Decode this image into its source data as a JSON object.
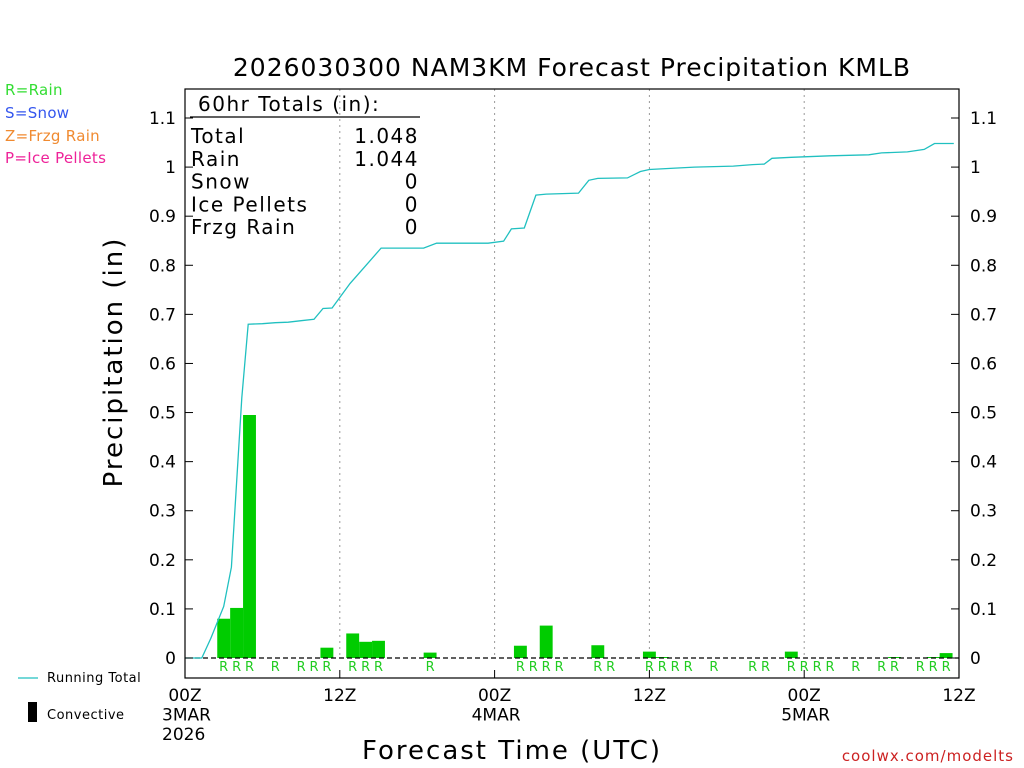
{
  "chart_data": {
    "type": "bar",
    "title": "2026030300 NAM3KM Forecast Precipitation KMLB",
    "xlabel": "Forecast Time (UTC)",
    "ylabel": "Precipitation (in)",
    "ylim": [
      0,
      1.1
    ],
    "xlim_hours": [
      0,
      60
    ],
    "yticks": [
      0,
      0.1,
      0.2,
      0.3,
      0.4,
      0.5,
      0.6,
      0.7,
      0.8,
      0.9,
      1,
      1.1
    ],
    "ytick_labels": [
      "0",
      "0.1",
      "0.2",
      "0.3",
      "0.4",
      "0.5",
      "0.6",
      "0.7",
      "0.8",
      "0.9",
      "1",
      "1.1"
    ],
    "xticks": [
      {
        "hour": 0,
        "lines": [
          "00Z",
          "3MAR",
          "2026"
        ]
      },
      {
        "hour": 12,
        "lines": [
          "12Z"
        ]
      },
      {
        "hour": 24,
        "lines": [
          "00Z",
          "4MAR"
        ]
      },
      {
        "hour": 36,
        "lines": [
          "12Z"
        ]
      },
      {
        "hour": 48,
        "lines": [
          "00Z",
          "5MAR"
        ]
      },
      {
        "hour": 60,
        "lines": [
          "12Z"
        ]
      }
    ],
    "precip_bars": {
      "name": "Hourly Precipitation (Rain)",
      "color": "#00cc00",
      "points": [
        {
          "hour": 3,
          "value": 0.08
        },
        {
          "hour": 4,
          "value": 0.102
        },
        {
          "hour": 5,
          "value": 0.495
        },
        {
          "hour": 11,
          "value": 0.021
        },
        {
          "hour": 13,
          "value": 0.05
        },
        {
          "hour": 14,
          "value": 0.033
        },
        {
          "hour": 15,
          "value": 0.035
        },
        {
          "hour": 19,
          "value": 0.011
        },
        {
          "hour": 26,
          "value": 0.025
        },
        {
          "hour": 28,
          "value": 0.066
        },
        {
          "hour": 32,
          "value": 0.026
        },
        {
          "hour": 36,
          "value": 0.013
        },
        {
          "hour": 37,
          "value": 0.002
        },
        {
          "hour": 47,
          "value": 0.013
        },
        {
          "hour": 55,
          "value": 0.002
        },
        {
          "hour": 58,
          "value": 0.002
        },
        {
          "hour": 59,
          "value": 0.01
        }
      ]
    },
    "running_total": {
      "name": "Running Total",
      "color": "#20c0c0",
      "points": [
        [
          0,
          0
        ],
        [
          1,
          0
        ],
        [
          1.3,
          0
        ],
        [
          2,
          0.04
        ],
        [
          3,
          0.105
        ],
        [
          3.6,
          0.185
        ],
        [
          4.4,
          0.53
        ],
        [
          4.9,
          0.68
        ],
        [
          6,
          0.681
        ],
        [
          7,
          0.683
        ],
        [
          8,
          0.684
        ],
        [
          9,
          0.687
        ],
        [
          10,
          0.69
        ],
        [
          10.7,
          0.712
        ],
        [
          11.4,
          0.713
        ],
        [
          12.8,
          0.763
        ],
        [
          14,
          0.799
        ],
        [
          15.2,
          0.835
        ],
        [
          18.5,
          0.835
        ],
        [
          19.5,
          0.845
        ],
        [
          23.5,
          0.845
        ],
        [
          24.7,
          0.849
        ],
        [
          25.3,
          0.874
        ],
        [
          26.3,
          0.876
        ],
        [
          27.2,
          0.943
        ],
        [
          28,
          0.945
        ],
        [
          30.5,
          0.947
        ],
        [
          31.3,
          0.973
        ],
        [
          32,
          0.977
        ],
        [
          34.3,
          0.978
        ],
        [
          35.3,
          0.991
        ],
        [
          36,
          0.995
        ],
        [
          38,
          0.998
        ],
        [
          39.5,
          1.0
        ],
        [
          42.5,
          1.002
        ],
        [
          44,
          1.005
        ],
        [
          44.9,
          1.006
        ],
        [
          45.5,
          1.018
        ],
        [
          47,
          1.02
        ],
        [
          50,
          1.023
        ],
        [
          53,
          1.025
        ],
        [
          54,
          1.029
        ],
        [
          56,
          1.031
        ],
        [
          57.3,
          1.036
        ],
        [
          58.1,
          1.048
        ],
        [
          59,
          1.048
        ],
        [
          59.6,
          1.048
        ]
      ]
    },
    "ptype_markers": {
      "label": "R",
      "hours": [
        3,
        4,
        5,
        7,
        9,
        10,
        11,
        13,
        14,
        15,
        19,
        26,
        27,
        28,
        29,
        32,
        33,
        36,
        37,
        38,
        39,
        41,
        44,
        45,
        47,
        48,
        49,
        50,
        52,
        54,
        55,
        57,
        58,
        59
      ]
    },
    "totals_box": {
      "header": "60hr Totals (in):",
      "rows": [
        {
          "label": "Total",
          "value": "1.048"
        },
        {
          "label": "Rain",
          "value": "1.044"
        },
        {
          "label": "Snow",
          "value": "0"
        },
        {
          "label": "Ice Pellets",
          "value": "0"
        },
        {
          "label": "Frzg Rain",
          "value": "0"
        }
      ]
    },
    "ptype_legend": [
      {
        "text": "R=Rain",
        "color": "#33dd33"
      },
      {
        "text": "S=Snow",
        "color": "#3355ee"
      },
      {
        "text": "Z=Frzg Rain",
        "color": "#f08a30"
      },
      {
        "text": "P=Ice Pellets",
        "color": "#ee2299"
      }
    ],
    "bottom_legend": {
      "running_total": "Running Total",
      "convective": "Convective"
    },
    "credit": "coolwx.com/modelts"
  }
}
